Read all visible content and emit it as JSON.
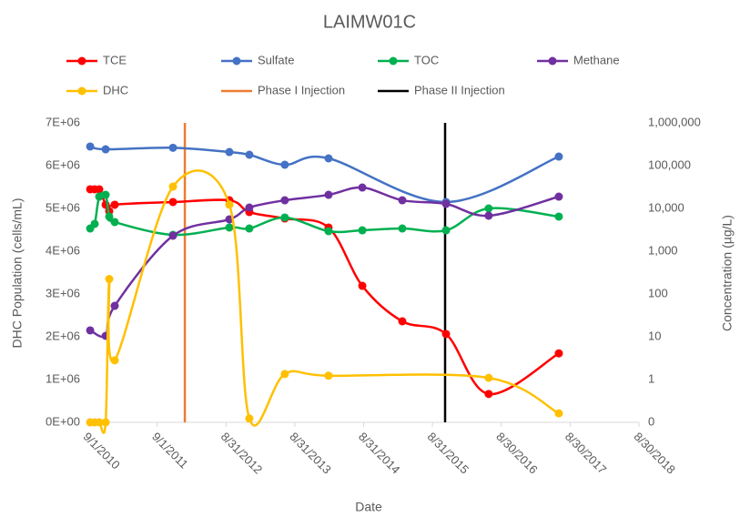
{
  "chart_data": {
    "type": "line",
    "title": "LAIMW01C",
    "x_label": "Date",
    "y_label": "DHC Population (cells/mL)",
    "y2_label": "Concentration (µg/L)",
    "xlim": [
      "2010-09-01",
      "2018-08-30"
    ],
    "xticks": [
      {
        "value": "2010-09-01",
        "label": "9/1/2010"
      },
      {
        "value": "2011-09-01",
        "label": "9/1/2011"
      },
      {
        "value": "2012-08-31",
        "label": "8/31/2012"
      },
      {
        "value": "2013-08-31",
        "label": "8/31/2013"
      },
      {
        "value": "2014-08-31",
        "label": "8/31/2014"
      },
      {
        "value": "2015-08-31",
        "label": "8/31/2015"
      },
      {
        "value": "2016-08-30",
        "label": "8/30/2016"
      },
      {
        "value": "2017-08-30",
        "label": "8/30/2017"
      },
      {
        "value": "2018-08-30",
        "label": "8/30/2018"
      }
    ],
    "ylim": [
      0,
      7000000
    ],
    "yticks": [
      {
        "value": 0,
        "label": "0E+00"
      },
      {
        "value": 1000000,
        "label": "1E+06"
      },
      {
        "value": 2000000,
        "label": "2E+06"
      },
      {
        "value": 3000000,
        "label": "3E+06"
      },
      {
        "value": 4000000,
        "label": "4E+06"
      },
      {
        "value": 5000000,
        "label": "5E+06"
      },
      {
        "value": 6000000,
        "label": "6E+06"
      },
      {
        "value": 7000000,
        "label": "7E+06"
      }
    ],
    "y2lim": [
      0.1,
      1000000
    ],
    "y2_log": true,
    "y2ticks": [
      {
        "value": 0.1,
        "label": "0"
      },
      1,
      10,
      100,
      {
        "value": 1000,
        "label": "1,000"
      },
      {
        "value": 10000,
        "label": "10,000"
      },
      {
        "value": 100000,
        "label": "100,000"
      },
      {
        "value": 1000000,
        "label": "1,000,000"
      }
    ],
    "smooth": true,
    "series": [
      {
        "name": "TCE",
        "color": "#ff0000",
        "axis": "y2",
        "x": [
          "2010-09-11",
          "2010-10-05",
          "2010-10-29",
          "2010-12-02",
          "2010-12-21",
          "2011-01-19",
          "2011-11-24",
          "2012-09-18",
          "2013-01-02",
          "2013-07-09",
          "2014-02-26",
          "2014-08-24",
          "2015-03-24",
          "2015-11-11",
          "2016-06-24",
          "2017-07-01"
        ],
        "values": [
          28000,
          28000,
          28000,
          12200,
          8630,
          12200,
          14100,
          15500,
          8220,
          5830,
          3580,
          155,
          23,
          11.6,
          0.46,
          4.1
        ]
      },
      {
        "name": "Sulfate",
        "color": "#4472c4",
        "axis": "y2",
        "x": [
          "2010-09-11",
          "2010-12-02",
          "2011-11-24",
          "2012-09-18",
          "2013-01-02",
          "2013-07-09",
          "2014-02-26",
          "2015-11-11",
          "2017-07-01"
        ],
        "values": [
          280000,
          241000,
          262000,
          208000,
          180000,
          105000,
          148000,
          14100,
          163000
        ]
      },
      {
        "name": "TOC",
        "color": "#00b050",
        "axis": "y2",
        "x": [
          "2010-09-11",
          "2010-10-05",
          "2010-10-29",
          "2010-12-02",
          "2010-12-21",
          "2011-01-19",
          "2011-11-24",
          "2012-09-18",
          "2013-01-02",
          "2013-07-09",
          "2014-02-26",
          "2014-08-24",
          "2015-03-24",
          "2015-11-11",
          "2016-06-24",
          "2017-07-01"
        ],
        "values": [
          3400,
          4350,
          18900,
          20800,
          6440,
          4800,
          2410,
          3580,
          3400,
          6130,
          2940,
          3080,
          3400,
          3080,
          10000,
          6440
        ]
      },
      {
        "name": "Methane",
        "color": "#7030a0",
        "axis": "y2",
        "x": [
          "2010-09-11",
          "2010-12-02",
          "2011-01-19",
          "2011-11-24",
          "2012-09-18",
          "2013-01-02",
          "2013-07-09",
          "2014-02-26",
          "2014-08-24",
          "2015-03-24",
          "2015-11-11",
          "2016-06-24",
          "2017-07-01"
        ],
        "values": [
          14.1,
          10.5,
          52.8,
          2300,
          5560,
          10500,
          15500,
          20800,
          30800,
          15500,
          12800,
          6760,
          18900
        ]
      },
      {
        "name": "DHC",
        "color": "#ffc000",
        "axis": "y",
        "x": [
          "2010-09-11",
          "2010-10-05",
          "2010-10-29",
          "2010-12-02",
          "2010-12-21",
          "2011-01-19",
          "2011-11-24",
          "2012-09-18",
          "2013-01-02",
          "2013-07-09",
          "2014-02-26",
          "2016-06-24",
          "2017-07-01"
        ],
        "values": [
          0,
          0,
          0,
          0,
          3350000,
          1450000,
          5510000,
          5090000,
          90000,
          1130000,
          1090000,
          1040000,
          210000
        ]
      }
    ],
    "events": [
      {
        "name": "Phase I Injection",
        "color": "#ed7d31",
        "x": "2012-01-26"
      },
      {
        "name": "Phase II Injection",
        "color": "#000000",
        "x": "2015-11-06"
      }
    ]
  }
}
